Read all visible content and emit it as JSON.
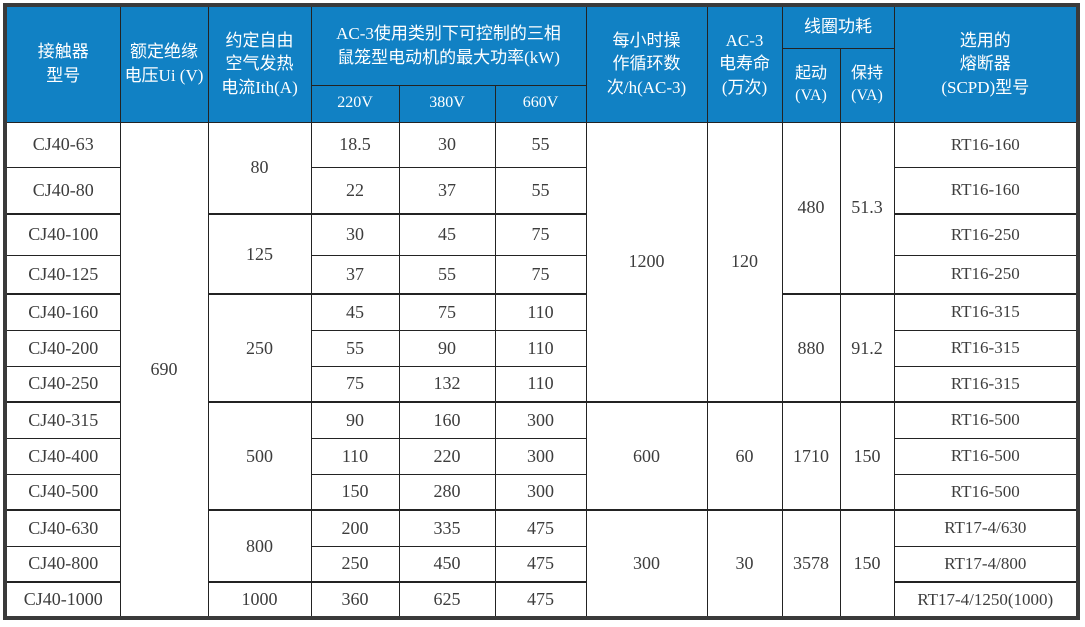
{
  "header": {
    "model": "接触器\n型号",
    "ui": "额定绝缘\n电压Ui (V)",
    "ith": "约定自由\n空气发热\n电流Ith(A)",
    "kw_group": "AC-3使用类别下可控制的三相\n鼠笼型电动机的最大功率(kW)",
    "kw_cols": [
      "220V",
      "380V",
      "660V"
    ],
    "cycles": "每小时操\n作循环数\n次/h(AC-3)",
    "life": "AC-3\n电寿命\n(万次)",
    "coil_group": "线圈功耗",
    "coil_start": "起动\n(VA)",
    "coil_hold": "保持\n(VA)",
    "fuse": "选用的\n熔断器\n(SCPD)型号"
  },
  "body": {
    "ui_value": "690",
    "ith_groups": [
      {
        "row": 0,
        "span": 2,
        "value": "80"
      },
      {
        "row": 2,
        "span": 2,
        "value": "125"
      },
      {
        "row": 4,
        "span": 3,
        "value": "250"
      },
      {
        "row": 7,
        "span": 3,
        "value": "500"
      },
      {
        "row": 10,
        "span": 2,
        "value": "800"
      },
      {
        "row": 12,
        "span": 1,
        "value": "1000"
      }
    ],
    "cycle_groups": [
      {
        "row": 0,
        "span": 7,
        "cycles": "1200",
        "life": "120"
      },
      {
        "row": 7,
        "span": 3,
        "cycles": "600",
        "life": "60"
      },
      {
        "row": 10,
        "span": 3,
        "cycles": "300",
        "life": "30"
      }
    ],
    "coil_groups": [
      {
        "row": 0,
        "span": 4,
        "start": "480",
        "hold": "51.3"
      },
      {
        "row": 4,
        "span": 3,
        "start": "880",
        "hold": "91.2"
      },
      {
        "row": 7,
        "span": 3,
        "start": "1710",
        "hold": "150"
      },
      {
        "row": 10,
        "span": 3,
        "start": "3578",
        "hold": "150"
      }
    ],
    "rows": [
      {
        "model": "CJ40-63",
        "kw220": "18.5",
        "kw380": "30",
        "kw660": "55",
        "fuse": "RT16-160"
      },
      {
        "model": "CJ40-80",
        "kw220": "22",
        "kw380": "37",
        "kw660": "55",
        "fuse": "RT16-160"
      },
      {
        "model": "CJ40-100",
        "kw220": "30",
        "kw380": "45",
        "kw660": "75",
        "fuse": "RT16-250"
      },
      {
        "model": "CJ40-125",
        "kw220": "37",
        "kw380": "55",
        "kw660": "75",
        "fuse": "RT16-250"
      },
      {
        "model": "CJ40-160",
        "kw220": "45",
        "kw380": "75",
        "kw660": "110",
        "fuse": "RT16-315"
      },
      {
        "model": "CJ40-200",
        "kw220": "55",
        "kw380": "90",
        "kw660": "110",
        "fuse": "RT16-315"
      },
      {
        "model": "CJ40-250",
        "kw220": "75",
        "kw380": "132",
        "kw660": "110",
        "fuse": "RT16-315"
      },
      {
        "model": "CJ40-315",
        "kw220": "90",
        "kw380": "160",
        "kw660": "300",
        "fuse": "RT16-500"
      },
      {
        "model": "CJ40-400",
        "kw220": "110",
        "kw380": "220",
        "kw660": "300",
        "fuse": "RT16-500"
      },
      {
        "model": "CJ40-500",
        "kw220": "150",
        "kw380": "280",
        "kw660": "300",
        "fuse": "RT16-500"
      },
      {
        "model": "CJ40-630",
        "kw220": "200",
        "kw380": "335",
        "kw660": "475",
        "fuse": "RT17-4/630"
      },
      {
        "model": "CJ40-800",
        "kw220": "250",
        "kw380": "450",
        "kw660": "475",
        "fuse": "RT17-4/800"
      },
      {
        "model": "CJ40-1000",
        "kw220": "360",
        "kw380": "625",
        "kw660": "475",
        "fuse": "RT17-4/1250(1000)"
      }
    ]
  },
  "colors": {
    "header_bg": "#1181c4",
    "header_text": "#ffffff",
    "body_text": "#3d3d3d",
    "grid_line": "#232323",
    "outer_border": "#3a3a3a"
  }
}
